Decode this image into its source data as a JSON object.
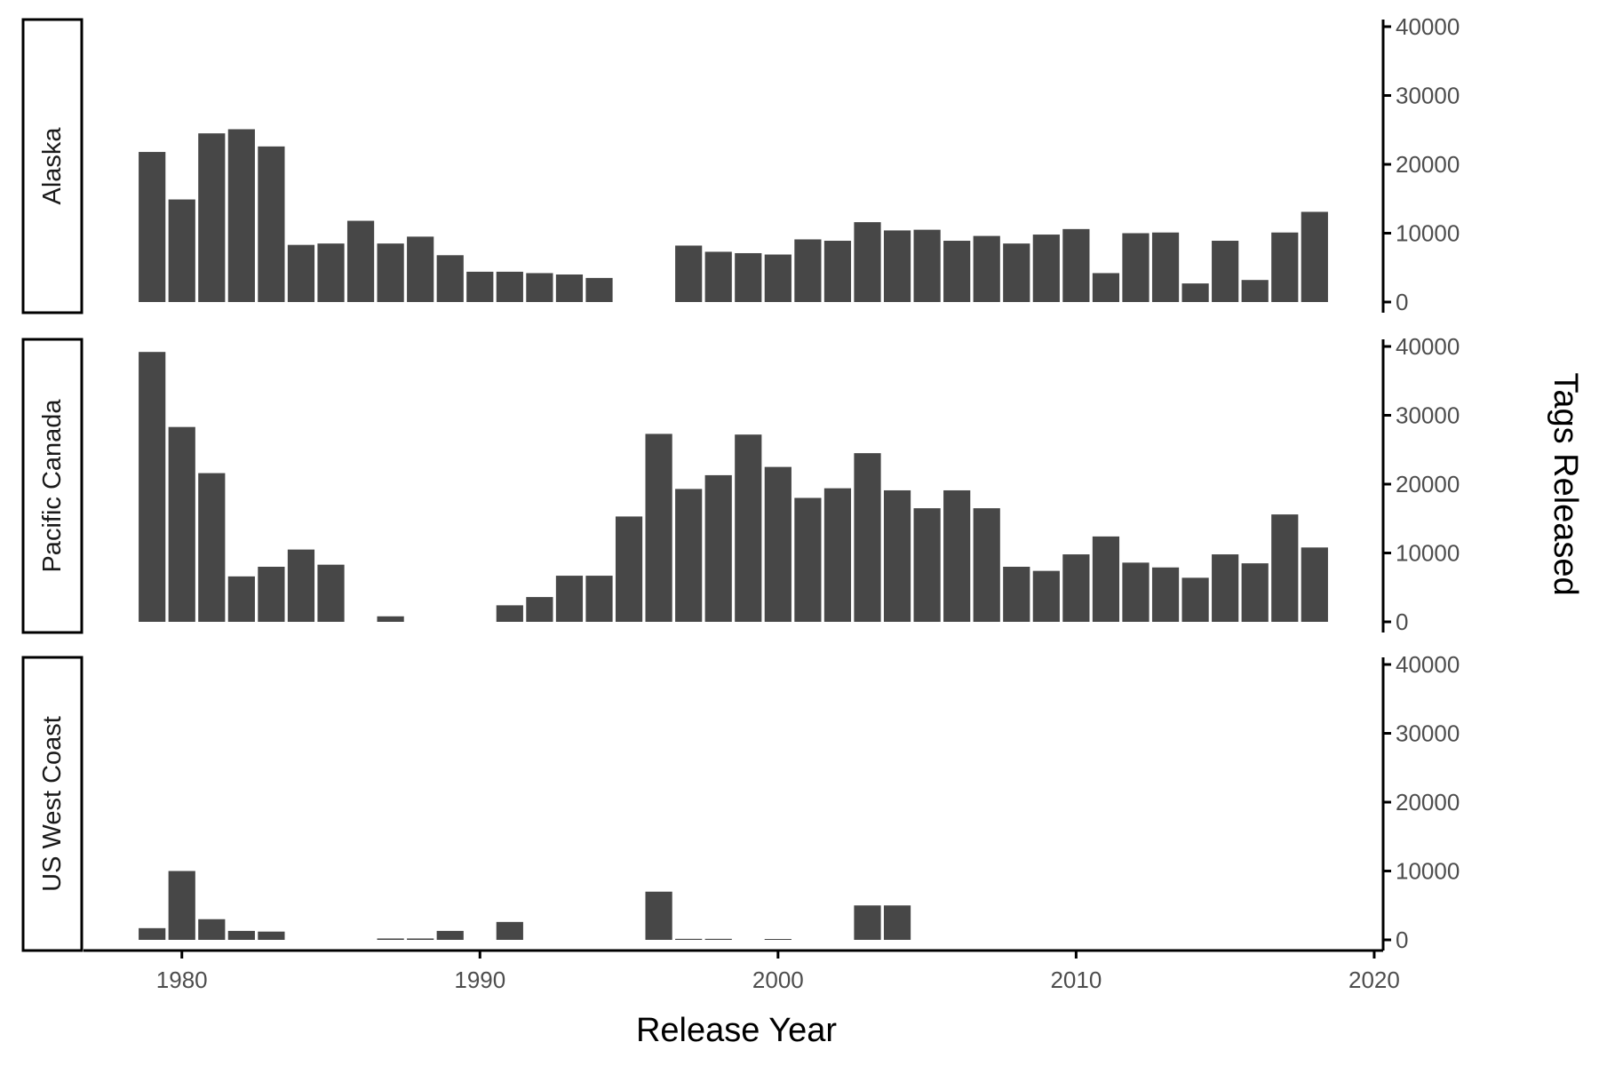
{
  "chart_data": {
    "type": "bar",
    "xlabel": "Release Year",
    "ylabel": "Tags Released",
    "xlim": [
      1976.7,
      2020.3
    ],
    "ylim": [
      0,
      40000
    ],
    "x_ticks": [
      1980,
      1990,
      2000,
      2010,
      2020
    ],
    "y_ticks": [
      0,
      10000,
      20000,
      30000,
      40000
    ],
    "y_axis_position": "right",
    "grid": false,
    "bar_color": "#474747",
    "panels": [
      {
        "name": "Alaska",
        "x": [
          1979,
          1980,
          1981,
          1982,
          1983,
          1984,
          1985,
          1986,
          1987,
          1988,
          1989,
          1990,
          1991,
          1992,
          1993,
          1994,
          1997,
          1998,
          1999,
          2000,
          2001,
          2002,
          2003,
          2004,
          2005,
          2006,
          2007,
          2008,
          2009,
          2010,
          2011,
          2012,
          2013,
          2014,
          2015,
          2016,
          2017,
          2018
        ],
        "values": [
          21800,
          14900,
          24500,
          25100,
          22600,
          8300,
          8500,
          11800,
          8500,
          9500,
          6800,
          4400,
          4400,
          4200,
          4000,
          3500,
          8200,
          7300,
          7100,
          6900,
          9100,
          8900,
          11600,
          10400,
          10500,
          8900,
          9600,
          8500,
          9800,
          10600,
          4200,
          10000,
          10100,
          2700,
          8900,
          3200,
          10100,
          13100
        ]
      },
      {
        "name": "Pacific Canada",
        "x": [
          1979,
          1980,
          1981,
          1982,
          1983,
          1984,
          1985,
          1987,
          1991,
          1992,
          1993,
          1994,
          1995,
          1996,
          1997,
          1998,
          1999,
          2000,
          2001,
          2002,
          2003,
          2004,
          2005,
          2006,
          2007,
          2008,
          2009,
          2010,
          2011,
          2012,
          2013,
          2014,
          2015,
          2016,
          2017,
          2018
        ],
        "values": [
          39200,
          28300,
          21600,
          6600,
          8000,
          10500,
          8300,
          800,
          2400,
          3600,
          6700,
          6700,
          15300,
          27300,
          19300,
          21300,
          27200,
          22500,
          18000,
          19400,
          24500,
          19100,
          16500,
          19100,
          16500,
          8000,
          7400,
          9800,
          12400,
          8600,
          7900,
          6400,
          9800,
          8500,
          15600,
          10800
        ]
      },
      {
        "name": "US West Coast",
        "x": [
          1979,
          1980,
          1981,
          1982,
          1983,
          1987,
          1988,
          1989,
          1991,
          1996,
          1997,
          1998,
          2000,
          2003,
          2004
        ],
        "values": [
          1700,
          10000,
          3000,
          1300,
          1200,
          200,
          200,
          1300,
          2600,
          7000,
          150,
          150,
          120,
          5000,
          5000
        ]
      }
    ]
  }
}
